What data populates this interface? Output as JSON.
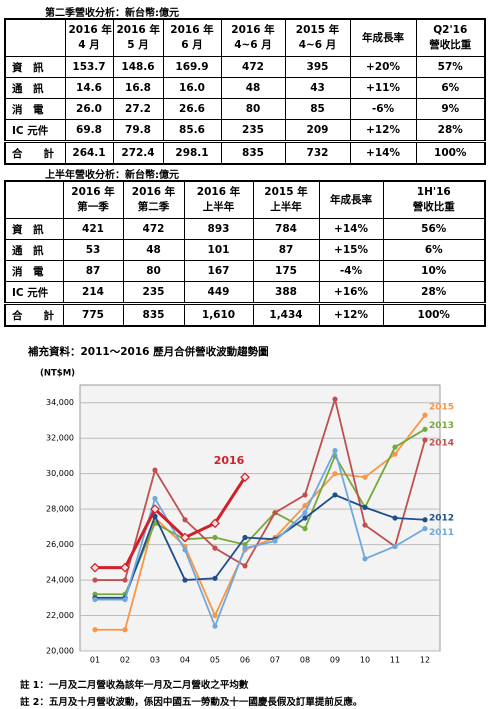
{
  "table1": {
    "caption": "第二季營收分析：新台幣:億元",
    "header": [
      [
        "2016 年",
        "4 月"
      ],
      [
        "2016 年",
        "5 月"
      ],
      [
        "2016 年",
        "6 月"
      ],
      [
        "2016 年",
        "4~6 月"
      ],
      [
        "2015 年",
        "4~6 月"
      ],
      [
        "年成長率"
      ],
      [
        "Q2'16",
        "營收比重"
      ]
    ],
    "rows": [
      [
        "資　訊",
        "153.7",
        "148.6",
        "169.9",
        "472",
        "395",
        "+20%",
        "57%"
      ],
      [
        "通　訊",
        "14.6",
        "16.8",
        "16.0",
        "48",
        "43",
        "+11%",
        "6%"
      ],
      [
        "消　電",
        "26.0",
        "27.2",
        "26.6",
        "80",
        "85",
        "-6%",
        "9%"
      ],
      [
        "IC 元件",
        "69.8",
        "79.8",
        "85.6",
        "235",
        "209",
        "+12%",
        "28%"
      ],
      [
        "合　　計",
        "264.1",
        "272.4",
        "298.1",
        "835",
        "732",
        "+14%",
        "100%"
      ]
    ]
  },
  "table2": {
    "caption": "上半年營收分析：新台幣:億元",
    "header": [
      [
        "2016 年",
        "第一季"
      ],
      [
        "2016 年",
        "第二季"
      ],
      [
        "2016 年",
        "上半年"
      ],
      [
        "2015 年",
        "上半年"
      ],
      [
        "年成長率"
      ],
      [
        "1H'16",
        "營收比重"
      ]
    ],
    "rows": [
      [
        "資　訊",
        "421",
        "472",
        "893",
        "784",
        "+14%",
        "56%"
      ],
      [
        "通　訊",
        "53",
        "48",
        "101",
        "87",
        "+15%",
        "6%"
      ],
      [
        "消　電",
        "87",
        "80",
        "167",
        "175",
        "-4%",
        "10%"
      ],
      [
        "IC 元件",
        "214",
        "235",
        "449",
        "388",
        "+16%",
        "28%"
      ],
      [
        "合　　計",
        "775",
        "835",
        "1,610",
        "1,434",
        "+12%",
        "100%"
      ]
    ]
  },
  "chart_data": {
    "type": "line",
    "title": "補充資料：2011～2016 歷月合併營收波動趨勢圖",
    "ylabel": "(NT$M)",
    "categories": [
      "01",
      "02",
      "03",
      "04",
      "05",
      "06",
      "07",
      "08",
      "09",
      "10",
      "11",
      "12"
    ],
    "ylim": [
      20000,
      35000
    ],
    "yticks": [
      {
        "value": 20000,
        "label": "20,000"
      },
      {
        "value": 22000,
        "label": "22,000"
      },
      {
        "value": 24000,
        "label": "24,000"
      },
      {
        "value": 26000,
        "label": "26,000"
      },
      {
        "value": 28000,
        "label": "28,000"
      },
      {
        "value": 30000,
        "label": "30,000"
      },
      {
        "value": 32000,
        "label": "32,000"
      },
      {
        "value": 34000,
        "label": "34,000"
      }
    ],
    "grid": true,
    "series": [
      {
        "name": "2015",
        "color": "#f79646",
        "values": [
          21200,
          21200,
          27500,
          25900,
          22000,
          25700,
          26400,
          28200,
          30000,
          29800,
          31100,
          33300
        ]
      },
      {
        "name": "2013",
        "color": "#77a83c",
        "values": [
          23200,
          23200,
          27200,
          26300,
          26400,
          26000,
          27800,
          26900,
          31000,
          28100,
          31500,
          32500
        ]
      },
      {
        "name": "2014",
        "color": "#c0504d",
        "values": [
          24000,
          24000,
          30200,
          27400,
          25800,
          24800,
          27800,
          28800,
          34200,
          27100,
          25900,
          31900
        ]
      },
      {
        "name": "2012",
        "color": "#1f4e8c",
        "values": [
          23000,
          23000,
          27600,
          24000,
          24100,
          26400,
          26300,
          27500,
          28800,
          28100,
          27500,
          27400
        ]
      },
      {
        "name": "2011",
        "color": "#6fa8dc",
        "values": [
          22900,
          22900,
          28600,
          25700,
          21400,
          25800,
          26200,
          27800,
          31300,
          25200,
          25900,
          26900
        ]
      },
      {
        "name": "2016",
        "color": "#d0202a",
        "values": [
          24700,
          24700,
          28000,
          26400,
          27200,
          29800,
          null,
          null,
          null,
          null,
          null,
          null
        ]
      }
    ]
  },
  "notes": [
    "註 1：一月及二月營收為該年一月及二月營收之平均數",
    "註 2：五月及十月營收波動，係因中國五一勞動及十一國慶長假及訂單提前反應。"
  ]
}
